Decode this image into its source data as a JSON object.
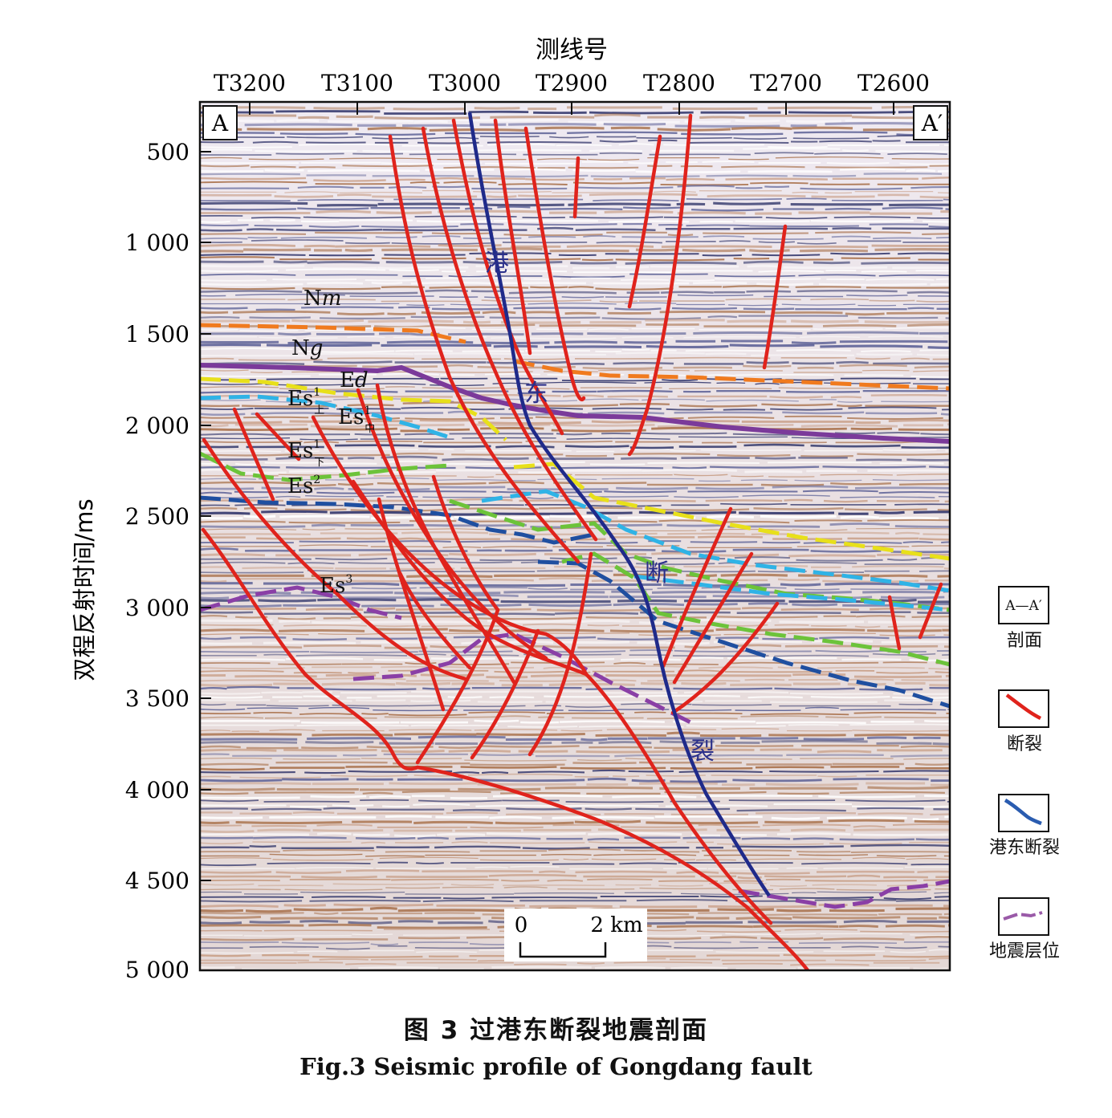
{
  "top_axis_title": "测线号",
  "line_labels": [
    "T3200",
    "T3100",
    "T3000",
    "T2900",
    "T2800",
    "T2700",
    "T2600"
  ],
  "left_axis_title": "双程反射时间/ms",
  "time_labels": [
    "500",
    "1 000",
    "1 500",
    "2 000",
    "2 500",
    "3 000",
    "3 500",
    "4 000",
    "4 500",
    "5 000"
  ],
  "corner_left": "A",
  "corner_right": "A′",
  "fault_name": [
    "港",
    "东",
    "断",
    "裂"
  ],
  "formations": {
    "nm_n": "N",
    "nm_m": "m",
    "ng_n": "N",
    "ng_g": "g",
    "ed_e": "E",
    "ed_d": "d",
    "es1u_e": "Es",
    "es1u_sup": "1",
    "es1u_sub": "上",
    "es1m_e": "Es",
    "es1m_sup": "1",
    "es1m_sub": "中",
    "es1l_e": "Es",
    "es1l_sup": "1",
    "es1l_sub": "下",
    "es2_e": "Es",
    "es2_sup": "2",
    "es3_e": "Es",
    "es3_sup": "3"
  },
  "scale": {
    "zero": "0",
    "end": "2 km"
  },
  "legend": {
    "profile_symbol": "A—A′",
    "profile": "剖面",
    "fault": "断裂",
    "gangdong_fault": "港东断裂",
    "horizon": "地震层位"
  },
  "caption_cn": "图 3   过港东断裂地震剖面",
  "caption_en": "Fig.3    Seismic profile of Gongdang fault",
  "colors": {
    "fault": "#e0231c",
    "gangdong_fault": "#1f2a8a",
    "horizon_orange": "#f07a1e",
    "horizon_purple": "#8a3fa6",
    "horizon_yellow": "#e8e01a",
    "horizon_cyan": "#2fb3e6",
    "horizon_green": "#6cc33a",
    "horizon_blue": "#1f4fa0",
    "seismic_brown": "#a8704a",
    "seismic_navy": "#2a2f66"
  }
}
